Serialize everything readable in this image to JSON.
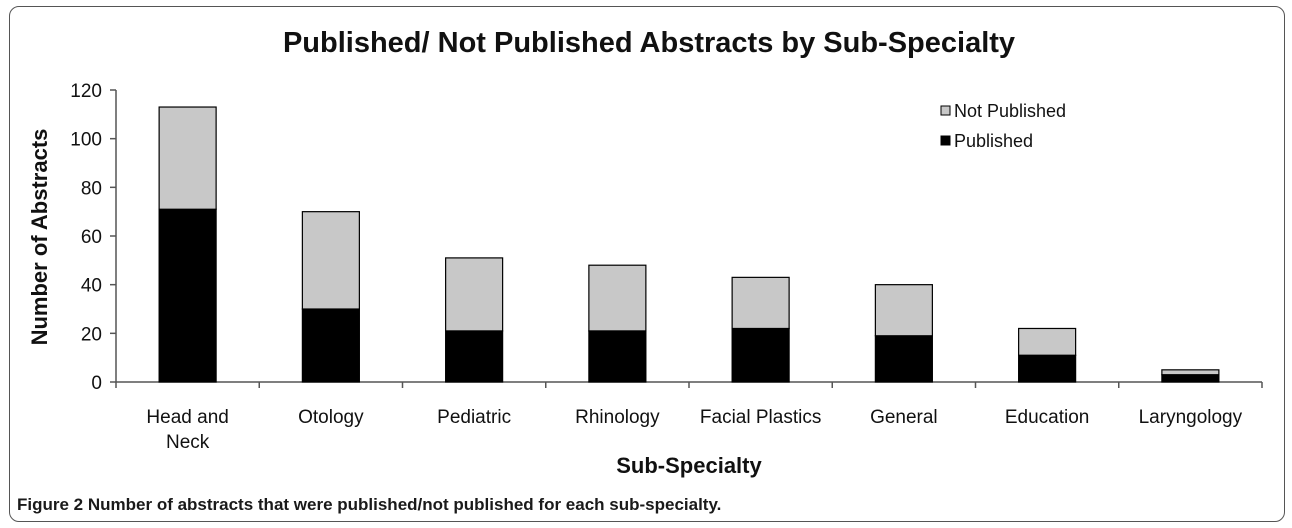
{
  "caption": {
    "label": "Figure 2",
    "text": "Number of abstracts that were published/not published for each sub-specialty."
  },
  "chart_data": {
    "type": "bar",
    "stacked": true,
    "title": "Published/ Not Published Abstracts by Sub-Specialty",
    "xlabel": "Sub-Specialty",
    "ylabel": "Number of Abstracts",
    "ylim": [
      0,
      120
    ],
    "yticks": [
      0,
      20,
      40,
      60,
      80,
      100,
      120
    ],
    "grid": false,
    "legend_position": "top-right",
    "categories": [
      "Head and Neck",
      "Otology",
      "Pediatric",
      "Rhinology",
      "Facial Plastics",
      "General",
      "Education",
      "Laryngology"
    ],
    "series": [
      {
        "name": "Published",
        "color": "#000000",
        "values": [
          71,
          30,
          21,
          21,
          22,
          19,
          11,
          3
        ]
      },
      {
        "name": "Not Published",
        "color": "#c8c8c8",
        "values": [
          42,
          40,
          30,
          27,
          21,
          21,
          11,
          2
        ]
      }
    ]
  }
}
